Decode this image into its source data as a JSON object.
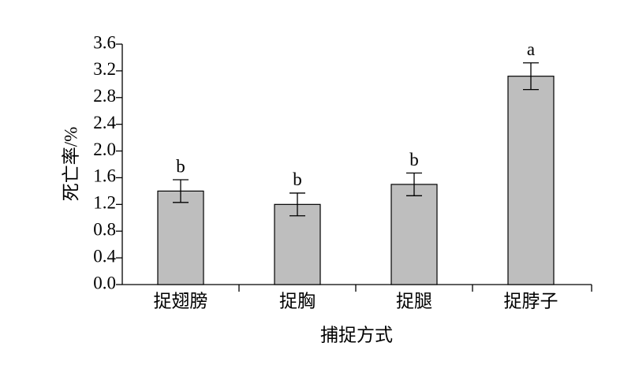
{
  "chart_data": {
    "type": "bar",
    "x_label": "捕捉方式",
    "y_label": "死亡率/%",
    "categories": [
      "捉翅膀",
      "捉胸",
      "捉腿",
      "捉脖子"
    ],
    "values": [
      1.4,
      1.2,
      1.5,
      3.12
    ],
    "errors": [
      0.17,
      0.17,
      0.17,
      0.2
    ],
    "annotations": [
      "b",
      "b",
      "b",
      "a"
    ],
    "color": "#bebebe",
    "ylim": [
      0,
      3.6
    ],
    "yticks": [
      {
        "value": 0,
        "label": "0.0"
      },
      0.4,
      0.8,
      1.2,
      1.6,
      {
        "value": 2,
        "label": "2.0"
      },
      2.4,
      2.8,
      3.2,
      3.6
    ]
  }
}
